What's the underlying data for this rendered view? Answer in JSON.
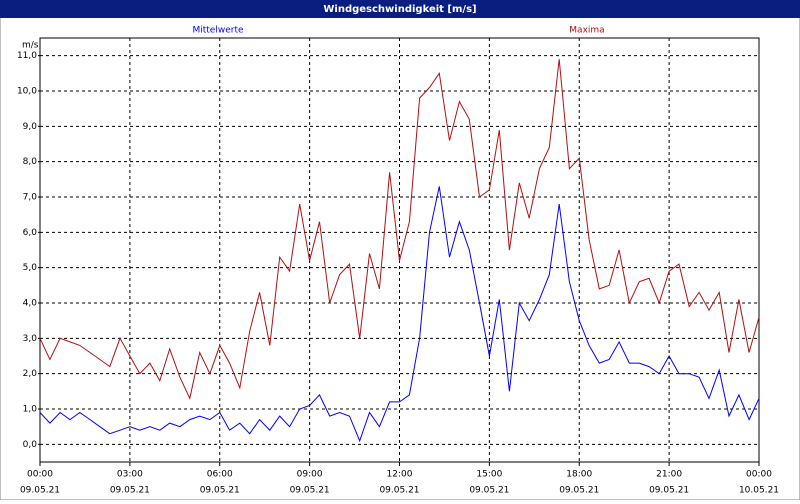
{
  "window_title": "Windgeschwindigkeit [m/s]",
  "chart_data": {
    "type": "line",
    "y_unit": "m/s",
    "x": [
      0,
      0.33,
      0.67,
      1,
      1.33,
      1.67,
      2,
      2.33,
      2.67,
      3,
      3.33,
      3.67,
      4,
      4.33,
      4.67,
      5,
      5.33,
      5.67,
      6,
      6.33,
      6.67,
      7,
      7.33,
      7.67,
      8,
      8.33,
      8.67,
      9,
      9.33,
      9.67,
      10,
      10.33,
      10.67,
      11,
      11.33,
      11.67,
      12,
      12.33,
      12.67,
      13,
      13.33,
      13.67,
      14,
      14.33,
      14.67,
      15,
      15.33,
      15.67,
      16,
      16.33,
      16.67,
      17,
      17.33,
      17.67,
      18,
      18.33,
      18.67,
      19,
      19.33,
      19.67,
      20,
      20.33,
      20.67,
      21,
      21.33,
      21.67,
      22,
      22.33,
      22.67,
      23,
      23.33,
      23.67,
      24
    ],
    "series": [
      {
        "name": "Mittelwerte",
        "color": "#0000ff",
        "values": [
          0.9,
          0.6,
          0.9,
          0.7,
          0.9,
          0.7,
          0.5,
          0.3,
          0.4,
          0.5,
          0.4,
          0.5,
          0.4,
          0.6,
          0.5,
          0.7,
          0.8,
          0.7,
          0.9,
          0.4,
          0.6,
          0.3,
          0.7,
          0.4,
          0.8,
          0.5,
          1.0,
          1.1,
          1.4,
          0.8,
          0.9,
          0.8,
          0.1,
          0.9,
          0.5,
          1.2,
          1.2,
          1.4,
          3.0,
          6.0,
          7.3,
          5.3,
          6.3,
          5.5,
          4.0,
          2.5,
          4.1,
          1.5,
          4.0,
          3.5,
          4.1,
          4.8,
          6.8,
          4.6,
          3.5,
          2.8,
          2.3,
          2.4,
          2.9,
          2.3,
          2.3,
          2.2,
          2.0,
          2.5,
          2.0,
          2.0,
          1.9,
          1.3,
          2.1,
          0.8,
          1.4,
          0.7,
          1.3
        ]
      },
      {
        "name": "Maxima",
        "color": "#b01010",
        "values": [
          3.0,
          2.4,
          3.0,
          2.9,
          2.8,
          2.6,
          2.4,
          2.2,
          3.0,
          2.5,
          2.0,
          2.3,
          1.8,
          2.7,
          1.9,
          1.3,
          2.6,
          2.0,
          2.8,
          2.3,
          1.6,
          3.2,
          4.3,
          2.8,
          5.3,
          4.9,
          6.8,
          5.2,
          6.3,
          4.0,
          4.8,
          5.1,
          3.0,
          5.4,
          4.4,
          7.7,
          5.2,
          6.3,
          9.8,
          10.1,
          10.5,
          8.6,
          9.7,
          9.2,
          7.0,
          7.2,
          8.9,
          5.5,
          7.4,
          6.4,
          7.8,
          8.4,
          10.9,
          7.8,
          8.1,
          5.8,
          4.4,
          4.5,
          5.5,
          4.0,
          4.6,
          4.7,
          4.0,
          4.9,
          5.1,
          3.9,
          4.3,
          3.8,
          4.3,
          2.6,
          4.1,
          2.6,
          3.6
        ]
      }
    ],
    "xlim": [
      0,
      24
    ],
    "xticks": [
      {
        "value": 0,
        "label": "00:00"
      },
      {
        "value": 3,
        "label": "03:00"
      },
      {
        "value": 6,
        "label": "06:00"
      },
      {
        "value": 9,
        "label": "09:00"
      },
      {
        "value": 12,
        "label": "12:00"
      },
      {
        "value": 15,
        "label": "15:00"
      },
      {
        "value": 18,
        "label": "18:00"
      },
      {
        "value": 21,
        "label": "21:00"
      },
      {
        "value": 24,
        "label": "00:00"
      }
    ],
    "xtick_dates": [
      "09.05.21",
      "09.05.21",
      "09.05.21",
      "09.05.21",
      "09.05.21",
      "09.05.21",
      "09.05.21",
      "09.05.21",
      "10.05.21"
    ],
    "ylim": [
      -0.5,
      11.5
    ],
    "yticks": [
      {
        "value": 0,
        "label": "0,0"
      },
      {
        "value": 1,
        "label": "1,0"
      },
      {
        "value": 2,
        "label": "2,0"
      },
      {
        "value": 3,
        "label": "3,0"
      },
      {
        "value": 4,
        "label": "4,0"
      },
      {
        "value": 5,
        "label": "5,0"
      },
      {
        "value": 6,
        "label": "6,0"
      },
      {
        "value": 7,
        "label": "7,0"
      },
      {
        "value": 8,
        "label": "8,0"
      },
      {
        "value": 9,
        "label": "9,0"
      },
      {
        "value": 10,
        "label": "10,0"
      },
      {
        "value": 11,
        "label": "11,0"
      }
    ],
    "grid": true
  }
}
